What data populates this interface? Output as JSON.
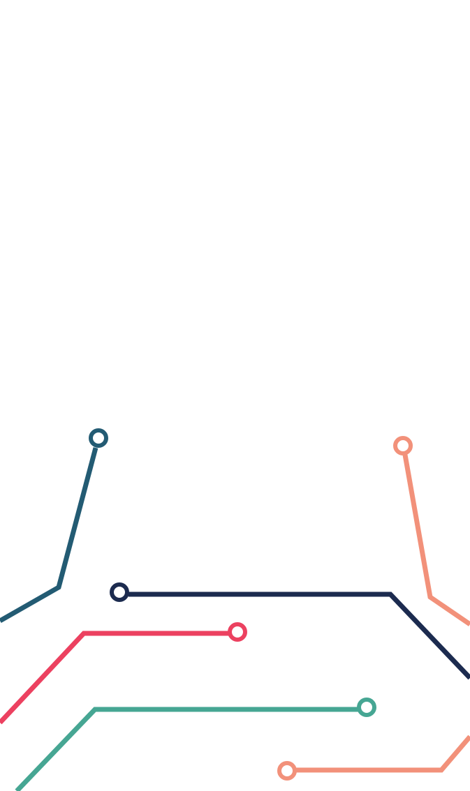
{
  "background_color": "#ffffff",
  "traces": [
    {
      "id": "teal-left",
      "color": "#235b73",
      "icon": "circuit-node-icon"
    },
    {
      "id": "salmon-right",
      "color": "#f2917a",
      "icon": "circuit-node-icon"
    },
    {
      "id": "navy-middle",
      "color": "#1c2b4f",
      "icon": "circuit-node-icon"
    },
    {
      "id": "red-middle",
      "color": "#ec4160",
      "icon": "circuit-node-icon"
    },
    {
      "id": "green-lower",
      "color": "#46a693",
      "icon": "circuit-node-icon"
    },
    {
      "id": "salmon-bottom",
      "color": "#f2917a",
      "icon": "circuit-node-icon"
    }
  ]
}
